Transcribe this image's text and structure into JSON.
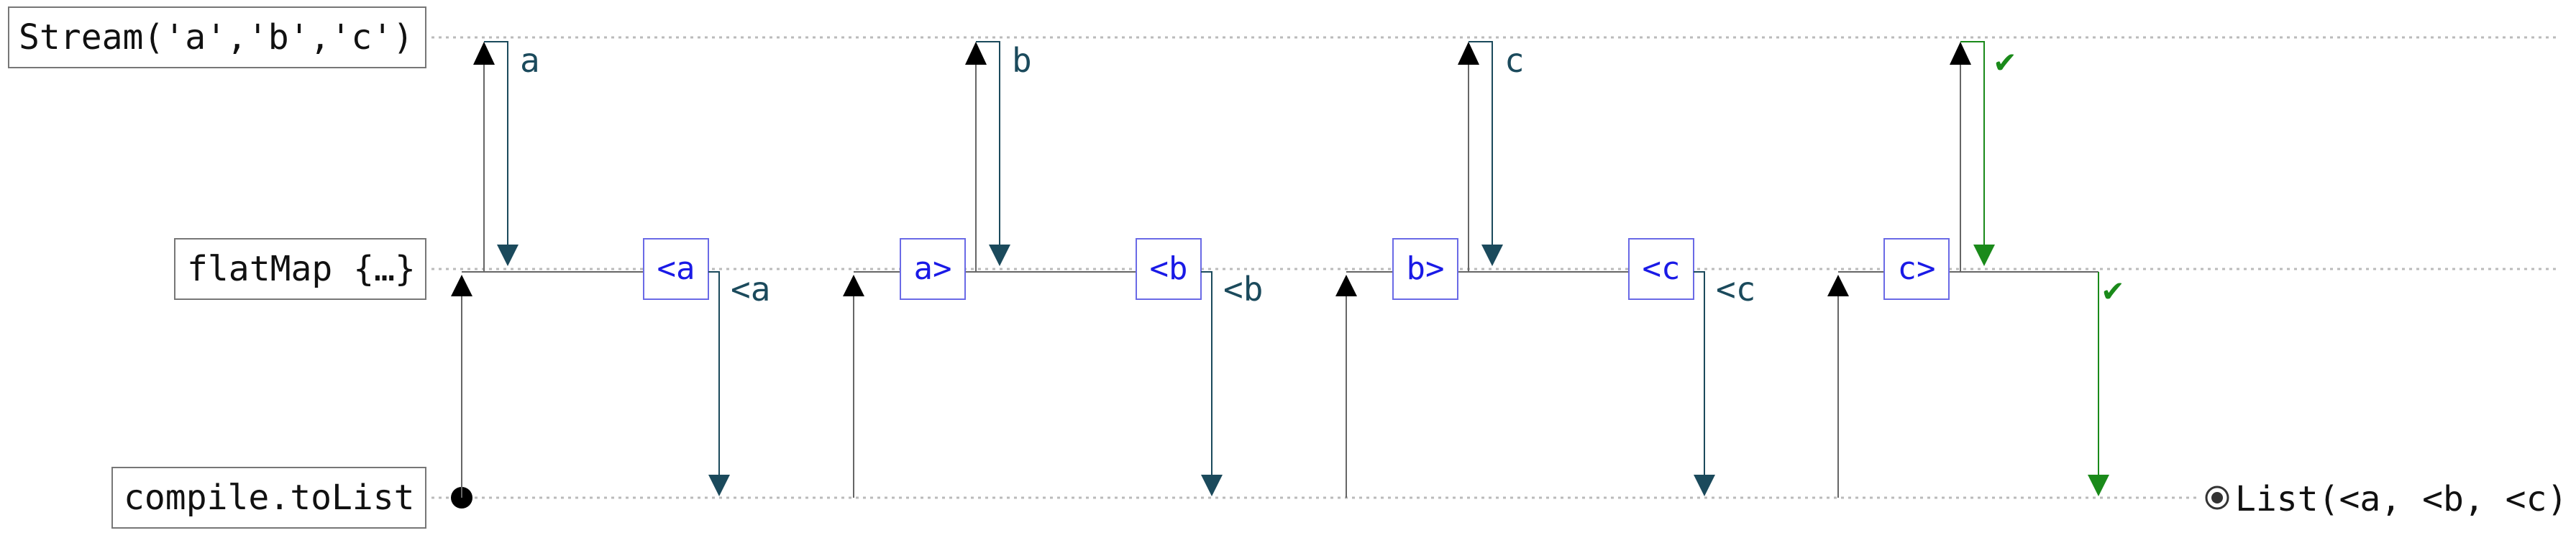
{
  "colors": {
    "request": "#000000",
    "emit": "#1b4a5c",
    "complete": "#1a8a1a",
    "box": "#1a1ae6",
    "guide": "#bbbbbb"
  },
  "lanes": [
    {
      "id": "source",
      "label": "Stream('a','b','c')"
    },
    {
      "id": "flatmap",
      "label": "flatMap {…}"
    },
    {
      "id": "sink",
      "label": "compile.toList"
    }
  ],
  "source_emits": [
    {
      "label": "a",
      "kind": "emit"
    },
    {
      "label": "b",
      "kind": "emit"
    },
    {
      "label": "c",
      "kind": "emit"
    },
    {
      "label": "✔",
      "kind": "complete"
    }
  ],
  "boxes": [
    "<a",
    "a>",
    "<b",
    "b>",
    "<c",
    "c>"
  ],
  "flatmap_emits": [
    {
      "label": "<a",
      "kind": "emit"
    },
    {
      "label": "<b",
      "kind": "emit"
    },
    {
      "label": "<c",
      "kind": "emit"
    },
    {
      "label": "✔",
      "kind": "complete"
    }
  ],
  "result": {
    "icon": "result-icon",
    "label": "List(<a, <b, <c)"
  }
}
